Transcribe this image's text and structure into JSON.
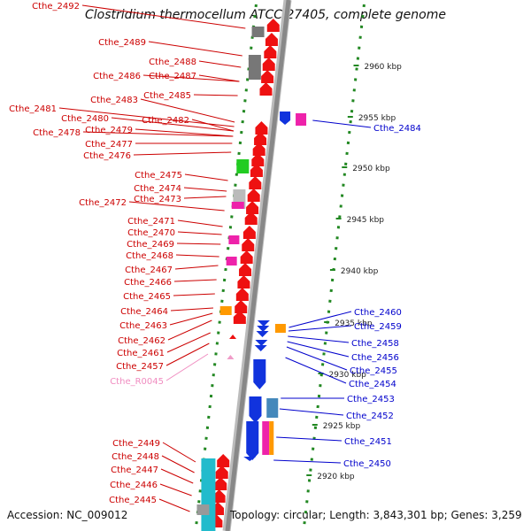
{
  "title": "Clostridium thermocellum ATCC 27405, complete genome",
  "accession": "Accession: NC_009012",
  "topology": "Topology: circular; Length: 3,843,301 bp; Genes: 3,259",
  "scale_labels": [
    "2960 kbp",
    "2955 kbp",
    "2950 kbp",
    "2945 kbp",
    "2940 kbp",
    "2935 kbp",
    "2930 kbp",
    "2925 kbp",
    "2920 kbp"
  ],
  "left_labels": [
    "Cthe_2492",
    "Cthe_2489",
    "Cthe_2488",
    "Cthe_2487",
    "Cthe_2486",
    "Cthe_2485",
    "Cthe_2483",
    "Cthe_2481",
    "Cthe_2480",
    "Cthe_2482",
    "Cthe_2479",
    "Cthe_2478",
    "Cthe_2477",
    "Cthe_2476",
    "Cthe_2475",
    "Cthe_2474",
    "Cthe_2473",
    "Cthe_2472",
    "Cthe_2471",
    "Cthe_2470",
    "Cthe_2469",
    "Cthe_2468",
    "Cthe_2467",
    "Cthe_2466",
    "Cthe_2465",
    "Cthe_2464",
    "Cthe_2463",
    "Cthe_2462",
    "Cthe_2461",
    "Cthe_2457",
    "Cthe_R0045",
    "Cthe_2449",
    "Cthe_2448",
    "Cthe_2447",
    "Cthe_2446",
    "Cthe_2445"
  ],
  "right_labels": [
    "Cthe_2484",
    "Cthe_2460",
    "Cthe_2459",
    "Cthe_2458",
    "Cthe_2456",
    "Cthe_2455",
    "Cthe_2454",
    "Cthe_2453",
    "Cthe_2452",
    "Cthe_2451",
    "Cthe_2450"
  ],
  "colors": {
    "forward_gene": "#ee1111",
    "reverse_gene": "#1133dd",
    "left_label": "#cc0000",
    "right_label": "#0000cc",
    "rna_label": "#f08cc0",
    "axis": "#888888",
    "ruler": "#228822",
    "grey_box": "#777777",
    "magenta_box": "#ee22aa",
    "green_box": "#22cc22",
    "cyan_box": "#22bbcc",
    "orange_box": "#ff9900",
    "steel_box": "#4488bb"
  }
}
